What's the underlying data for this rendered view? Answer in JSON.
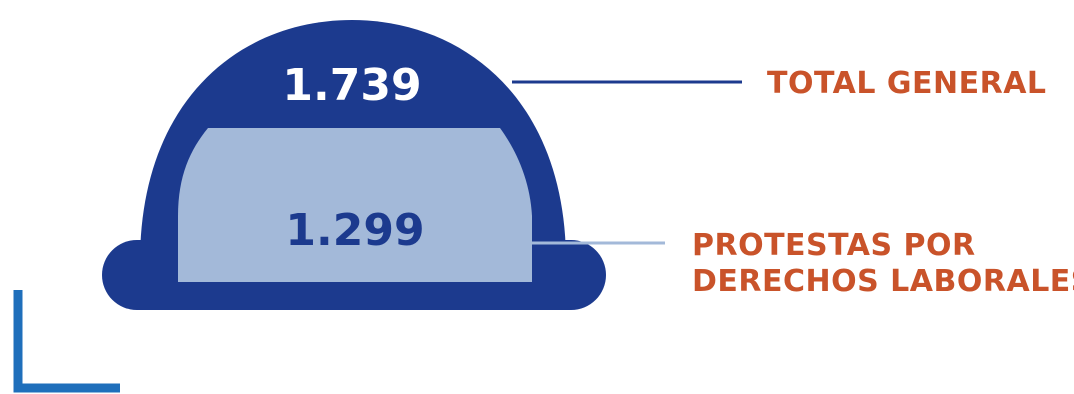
{
  "figure": {
    "total": {
      "value": "1.739",
      "label": "TOTAL GENERAL"
    },
    "labor": {
      "value": "1.299",
      "label_line1": "PROTESTAS POR",
      "label_line2": "DERECHOS LABORALES"
    },
    "colors": {
      "dark_blue": "#1c3a8e",
      "light_blue": "#a3b9d9",
      "orange": "#c9532a",
      "corner_blue": "#1f6fbb"
    }
  }
}
